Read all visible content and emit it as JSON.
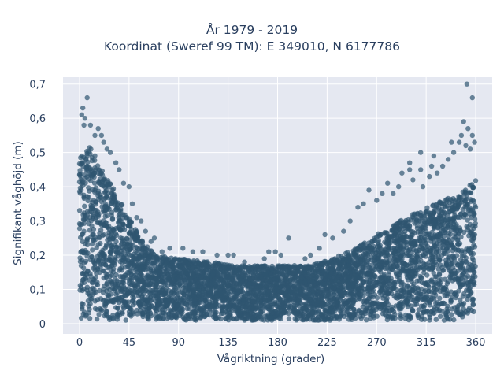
{
  "chart_data": {
    "type": "scatter",
    "title_lines": [
      "År 1979 - 2019",
      "Koordinat (Sweref 99 TM): E 349010, N 6177786"
    ],
    "xlabel": "Vågriktning (grader)",
    "ylabel": "Signifikant våghöjd (m)",
    "xlim": [
      -15,
      375
    ],
    "ylim": [
      -0.03,
      0.72
    ],
    "x_ticks": [
      0,
      45,
      90,
      135,
      180,
      225,
      270,
      315,
      360
    ],
    "x_tick_labels": [
      "0",
      "45",
      "90",
      "135",
      "180",
      "225",
      "270",
      "315",
      "360"
    ],
    "y_ticks": [
      0,
      0.1,
      0.2,
      0.3,
      0.4,
      0.5,
      0.6,
      0.7
    ],
    "y_tick_labels": [
      "0",
      "0,1",
      "0,2",
      "0,3",
      "0,4",
      "0,5",
      "0,6",
      "0,7"
    ],
    "marker_color": "#2f5570",
    "marker_opacity": 0.7,
    "plot_bgcolor": "#e5e8f1",
    "grid": true,
    "dense_band": [
      {
        "x": 0,
        "y_max": 0.5
      },
      {
        "x": 10,
        "y_max": 0.52
      },
      {
        "x": 20,
        "y_max": 0.45
      },
      {
        "x": 30,
        "y_max": 0.4
      },
      {
        "x": 40,
        "y_max": 0.34
      },
      {
        "x": 50,
        "y_max": 0.28
      },
      {
        "x": 60,
        "y_max": 0.23
      },
      {
        "x": 70,
        "y_max": 0.2
      },
      {
        "x": 90,
        "y_max": 0.19
      },
      {
        "x": 120,
        "y_max": 0.18
      },
      {
        "x": 150,
        "y_max": 0.17
      },
      {
        "x": 180,
        "y_max": 0.17
      },
      {
        "x": 210,
        "y_max": 0.17
      },
      {
        "x": 230,
        "y_max": 0.19
      },
      {
        "x": 250,
        "y_max": 0.22
      },
      {
        "x": 270,
        "y_max": 0.26
      },
      {
        "x": 290,
        "y_max": 0.3
      },
      {
        "x": 310,
        "y_max": 0.33
      },
      {
        "x": 330,
        "y_max": 0.36
      },
      {
        "x": 345,
        "y_max": 0.38
      },
      {
        "x": 360,
        "y_max": 0.42
      }
    ],
    "outliers": [
      {
        "x": 2,
        "y": 0.61
      },
      {
        "x": 3,
        "y": 0.63
      },
      {
        "x": 5,
        "y": 0.6
      },
      {
        "x": 7,
        "y": 0.66
      },
      {
        "x": 4,
        "y": 0.58
      },
      {
        "x": 10,
        "y": 0.58
      },
      {
        "x": 14,
        "y": 0.55
      },
      {
        "x": 17,
        "y": 0.57
      },
      {
        "x": 20,
        "y": 0.55
      },
      {
        "x": 22,
        "y": 0.53
      },
      {
        "x": 25,
        "y": 0.51
      },
      {
        "x": 28,
        "y": 0.5
      },
      {
        "x": 33,
        "y": 0.47
      },
      {
        "x": 36,
        "y": 0.45
      },
      {
        "x": 40,
        "y": 0.41
      },
      {
        "x": 45,
        "y": 0.4
      },
      {
        "x": 48,
        "y": 0.35
      },
      {
        "x": 52,
        "y": 0.31
      },
      {
        "x": 56,
        "y": 0.3
      },
      {
        "x": 60,
        "y": 0.27
      },
      {
        "x": 65,
        "y": 0.24
      },
      {
        "x": 68,
        "y": 0.25
      },
      {
        "x": 75,
        "y": 0.21
      },
      {
        "x": 82,
        "y": 0.22
      },
      {
        "x": 94,
        "y": 0.22
      },
      {
        "x": 103,
        "y": 0.21
      },
      {
        "x": 112,
        "y": 0.21
      },
      {
        "x": 125,
        "y": 0.2
      },
      {
        "x": 135,
        "y": 0.2
      },
      {
        "x": 140,
        "y": 0.2
      },
      {
        "x": 150,
        "y": 0.18
      },
      {
        "x": 168,
        "y": 0.19
      },
      {
        "x": 172,
        "y": 0.21
      },
      {
        "x": 178,
        "y": 0.21
      },
      {
        "x": 183,
        "y": 0.2
      },
      {
        "x": 190,
        "y": 0.25
      },
      {
        "x": 205,
        "y": 0.19
      },
      {
        "x": 210,
        "y": 0.2
      },
      {
        "x": 218,
        "y": 0.22
      },
      {
        "x": 223,
        "y": 0.26
      },
      {
        "x": 230,
        "y": 0.25
      },
      {
        "x": 240,
        "y": 0.27
      },
      {
        "x": 246,
        "y": 0.3
      },
      {
        "x": 253,
        "y": 0.34
      },
      {
        "x": 258,
        "y": 0.35
      },
      {
        "x": 263,
        "y": 0.39
      },
      {
        "x": 270,
        "y": 0.36
      },
      {
        "x": 275,
        "y": 0.38
      },
      {
        "x": 280,
        "y": 0.41
      },
      {
        "x": 285,
        "y": 0.38
      },
      {
        "x": 290,
        "y": 0.4
      },
      {
        "x": 293,
        "y": 0.44
      },
      {
        "x": 300,
        "y": 0.45
      },
      {
        "x": 303,
        "y": 0.42
      },
      {
        "x": 310,
        "y": 0.45
      },
      {
        "x": 312,
        "y": 0.4
      },
      {
        "x": 318,
        "y": 0.43
      },
      {
        "x": 320,
        "y": 0.46
      },
      {
        "x": 325,
        "y": 0.44
      },
      {
        "x": 330,
        "y": 0.46
      },
      {
        "x": 335,
        "y": 0.48
      },
      {
        "x": 338,
        "y": 0.53
      },
      {
        "x": 340,
        "y": 0.5
      },
      {
        "x": 345,
        "y": 0.53
      },
      {
        "x": 347,
        "y": 0.55
      },
      {
        "x": 349,
        "y": 0.59
      },
      {
        "x": 351,
        "y": 0.52
      },
      {
        "x": 353,
        "y": 0.57
      },
      {
        "x": 355,
        "y": 0.51
      },
      {
        "x": 357,
        "y": 0.55
      },
      {
        "x": 359,
        "y": 0.53
      },
      {
        "x": 352,
        "y": 0.7
      },
      {
        "x": 357,
        "y": 0.66
      },
      {
        "x": 300,
        "y": 0.47
      },
      {
        "x": 310,
        "y": 0.5
      },
      {
        "x": 322,
        "y": 0.49
      }
    ]
  }
}
